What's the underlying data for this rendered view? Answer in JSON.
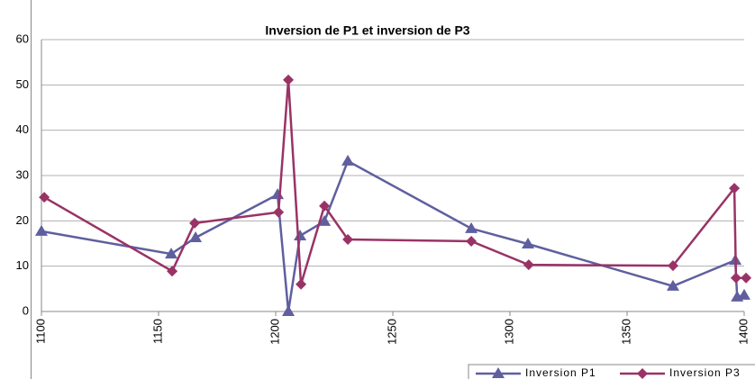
{
  "chart_data": {
    "type": "line",
    "title": "Inversion de P1 et inversion de P3",
    "series": [
      {
        "name": "Inversion P1",
        "color": "#5f5f9f",
        "marker": "triangle",
        "x": [
          1100,
          1155.4,
          1165.8,
          1200.8,
          1205.4,
          1210.4,
          1220.8,
          1230.8,
          1283.5,
          1307.7,
          1369.6,
          1396.2,
          1397,
          1400
        ],
        "values": [
          17.7,
          12.7,
          16.3,
          25.8,
          0,
          16.7,
          19.9,
          33.2,
          18.3,
          14.9,
          5.6,
          11.3,
          3.2,
          3.6
        ]
      },
      {
        "name": "Inversion P3",
        "color": "#993366",
        "marker": "diamond",
        "x": [
          1101.2,
          1155.8,
          1165.4,
          1201.2,
          1205.4,
          1210.8,
          1220.8,
          1230.8,
          1283.5,
          1308,
          1369.6,
          1395.8,
          1396.5,
          1400.8
        ],
        "values": [
          25.2,
          8.9,
          19.5,
          21.9,
          51.1,
          6,
          23.3,
          15.9,
          15.5,
          10.3,
          10.1,
          27.2,
          7.4,
          7.4
        ]
      }
    ],
    "xlim": [
      1100,
      1400
    ],
    "xticks": [
      1100,
      1150,
      1200,
      1250,
      1300,
      1350,
      1400
    ],
    "ylim": [
      0,
      60
    ],
    "yticks": [
      0,
      10,
      20,
      30,
      40,
      50,
      60
    ],
    "grid": true,
    "legend": "bottom-right"
  }
}
